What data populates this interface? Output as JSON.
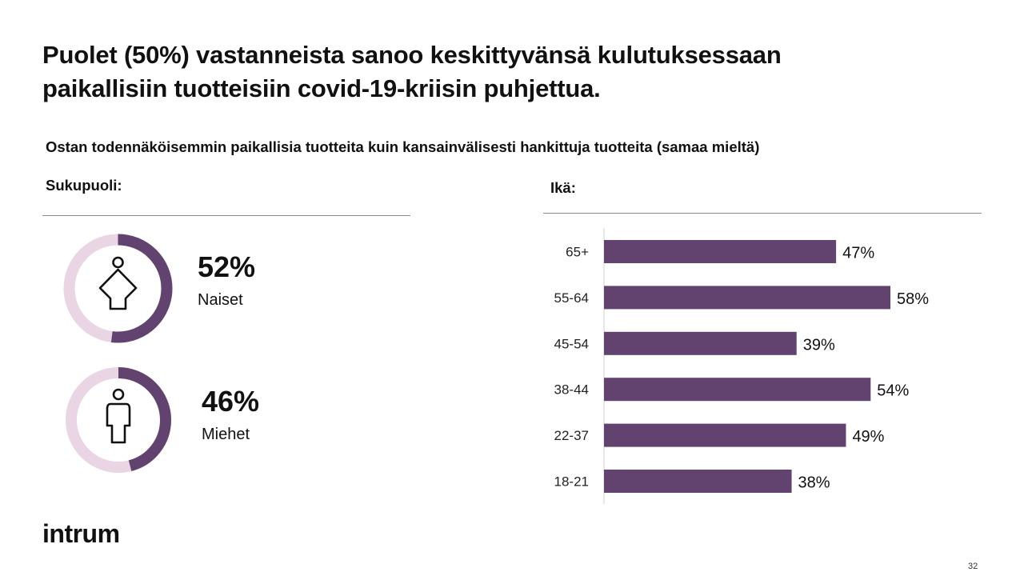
{
  "title_line1": "Puolet (50%) vastanneista sanoo keskittyvänsä kulutuksessaan",
  "title_line2": "paikallisiin tuotteisiin covid-19-kriisin puhjettua.",
  "subtitle": "Ostan todennäköisemmin paikallisia tuotteita kuin kansainvälisesti hankittuja tuotteita (samaa mieltä)",
  "gender": {
    "label": "Sukupuoli:",
    "items": [
      {
        "value_label": "52%",
        "value": 52,
        "label": "Naiset",
        "icon": "woman-icon"
      },
      {
        "value_label": "46%",
        "value": 46,
        "label": "Miehet",
        "icon": "man-icon"
      }
    ]
  },
  "age": {
    "label": "Ikä:"
  },
  "colors": {
    "primary": "#62436f",
    "track": "#ead5e5"
  },
  "chart_data": [
    {
      "type": "pie",
      "categories": [
        "Naiset"
      ],
      "values": [
        52
      ]
    },
    {
      "type": "pie",
      "categories": [
        "Miehet"
      ],
      "values": [
        46
      ]
    },
    {
      "type": "bar",
      "orientation": "horizontal",
      "categories": [
        "65+",
        "55-64",
        "45-54",
        "38-44",
        "22-37",
        "18-21"
      ],
      "values": [
        47,
        58,
        39,
        54,
        49,
        38
      ],
      "data_labels": [
        "47%",
        "58%",
        "39%",
        "54%",
        "49%",
        "38%"
      ],
      "title": "Ikä:",
      "xlim": [
        0,
        100
      ],
      "grid": false
    }
  ],
  "logo": "intrum",
  "page_number": "32"
}
